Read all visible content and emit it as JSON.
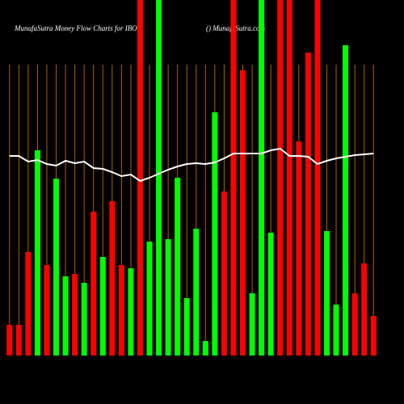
{
  "chart_data": {
    "type": "bar",
    "title": "MunafaSutra  Money Flow  Charts for IBOT",
    "subtitle": "() MunafaSutra.com",
    "categories": [
      null,
      null,
      null,
      null,
      null,
      null,
      null,
      null,
      null,
      null,
      null,
      null,
      null,
      null,
      null,
      null,
      null,
      null,
      null,
      null,
      null,
      null,
      null,
      null,
      null,
      null,
      null,
      null,
      null,
      null,
      null,
      null,
      null,
      null,
      null,
      null,
      null,
      null,
      null,
      null
    ],
    "series": [
      {
        "values": [
          38,
          38,
          128,
          254,
          112,
          219,
          98,
          101,
          90,
          178,
          122,
          191,
          112,
          108,
          440,
          141,
          440,
          144,
          220,
          71,
          157,
          18,
          301,
          203,
          440,
          353,
          77,
          440,
          152,
          440,
          440,
          265,
          375,
          440,
          154,
          63,
          384,
          77,
          114,
          49
        ],
        "colors": [
          "#ff0000",
          "#ff0000",
          "#ff0000",
          "#00ff00",
          "#ff0000",
          "#00ff00",
          "#00ff00",
          "#ff0000",
          "#00ff00",
          "#ff0000",
          "#00ff00",
          "#ff0000",
          "#ff0000",
          "#00ff00",
          "#ff0000",
          "#00ff00",
          "#00ff00",
          "#00ff00",
          "#00ff00",
          "#00ff00",
          "#00ff00",
          "#00ff00",
          "#00ff00",
          "#ff0000",
          "#ff0000",
          "#ff0000",
          "#00ff00",
          "#00ff00",
          "#00ff00",
          "#ff0000",
          "#ff0000",
          "#ff0000",
          "#ff0000",
          "#ff0000",
          "#00ff00",
          "#00ff00",
          "#00ff00",
          "#ff0000",
          "#ff0000",
          "#ff0000"
        ]
      },
      {
        "type": "line",
        "color": "#ffffff",
        "values": [
          247,
          247,
          240,
          242,
          237,
          235,
          241,
          238,
          240,
          232,
          231,
          227,
          222,
          224,
          216,
          220,
          225,
          230,
          234,
          237,
          238,
          237,
          239,
          244,
          250,
          250,
          250,
          250,
          254,
          256,
          247,
          247,
          246,
          237,
          241,
          244,
          246,
          248,
          249,
          250
        ]
      }
    ],
    "ylim": [
      0,
      440
    ],
    "grid_color": "#b35f00"
  }
}
